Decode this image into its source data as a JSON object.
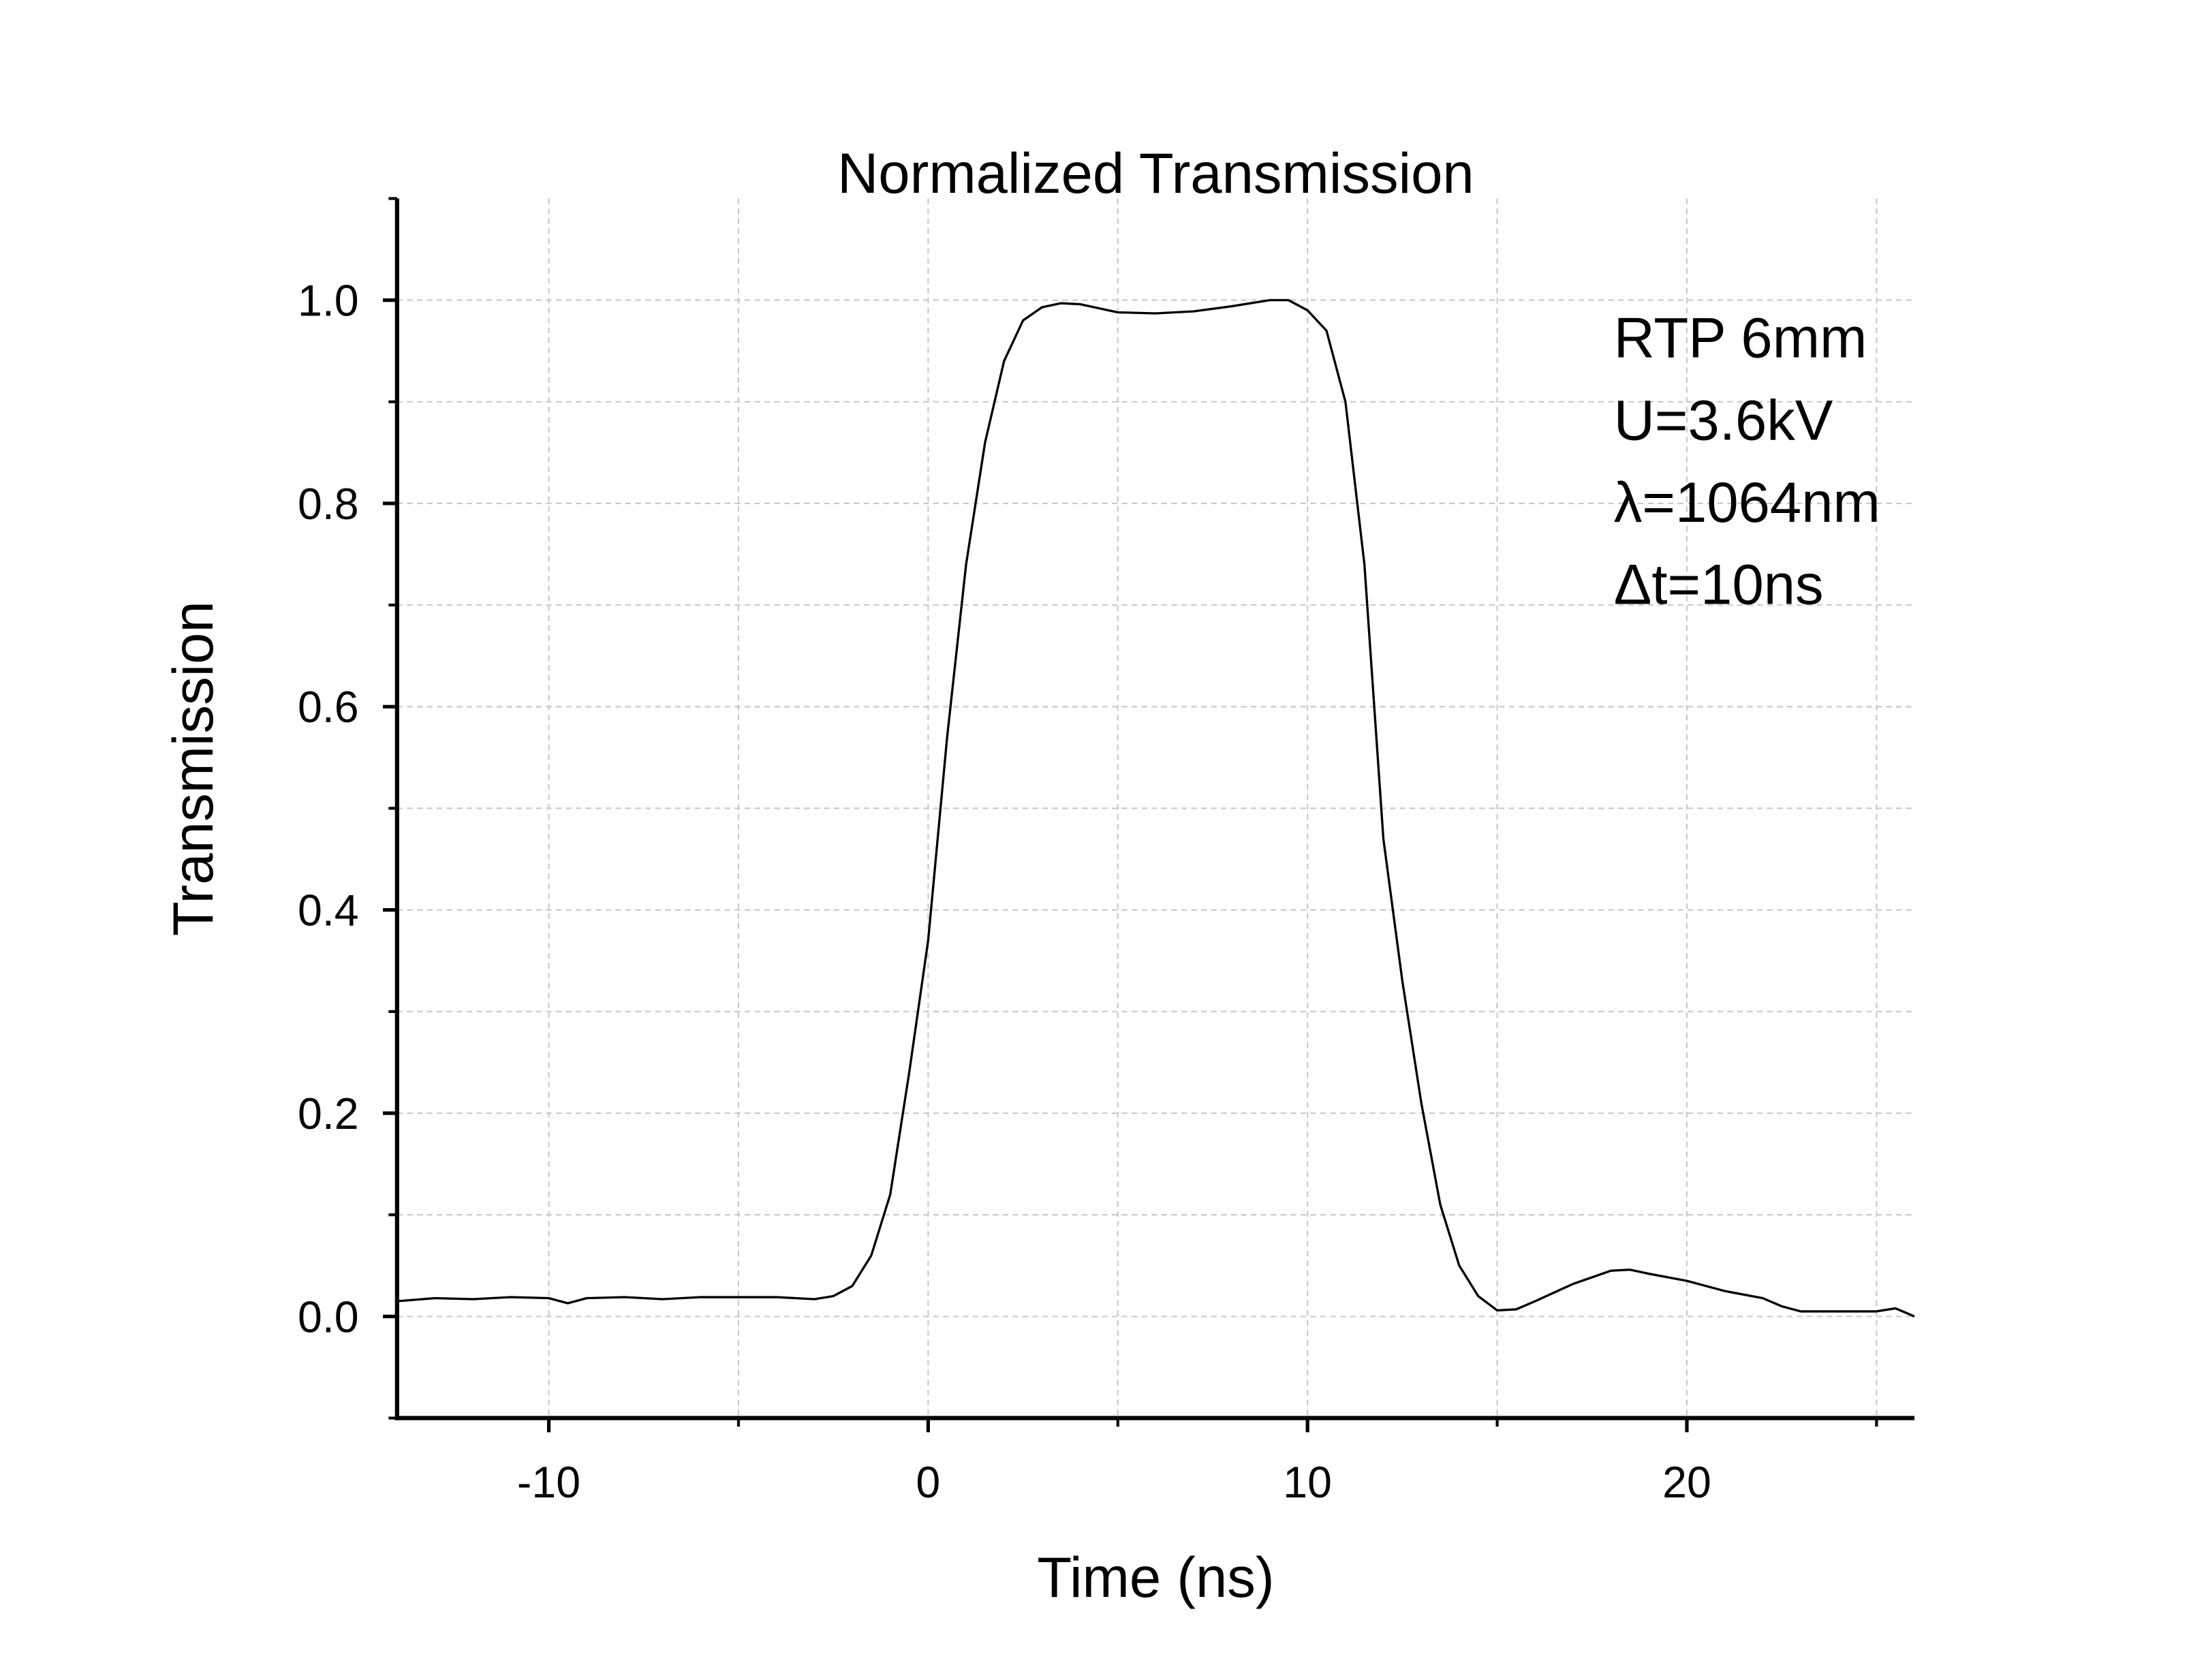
{
  "chart_data": {
    "type": "line",
    "title": "Normalized Transmission",
    "x_label": "Time (ns)",
    "y_label": "Transmission",
    "annotations": [
      "RTP 6mm",
      "U=3.6kV",
      "λ=1064nm",
      "Δt=10ns"
    ],
    "x": [
      -14,
      -13,
      -12,
      -11,
      -10,
      -9.5,
      -9,
      -8,
      -7,
      -6,
      -5,
      -4,
      -3,
      -2.5,
      -2,
      -1.5,
      -1,
      -0.5,
      0,
      0.5,
      1,
      1.5,
      2,
      2.5,
      3,
      3.5,
      4,
      5,
      6,
      7,
      8,
      9,
      9.5,
      10,
      10.5,
      11,
      11.5,
      12,
      12.5,
      13,
      13.5,
      14,
      14.5,
      15,
      15.5,
      16,
      17,
      18,
      18.5,
      19,
      20,
      21,
      22,
      22.5,
      23,
      24,
      25,
      25.5,
      26
    ],
    "values": [
      0.015,
      0.018,
      0.017,
      0.019,
      0.018,
      0.013,
      0.018,
      0.019,
      0.017,
      0.019,
      0.019,
      0.019,
      0.017,
      0.02,
      0.03,
      0.06,
      0.12,
      0.24,
      0.37,
      0.57,
      0.74,
      0.86,
      0.94,
      0.98,
      0.993,
      0.997,
      0.996,
      0.988,
      0.987,
      0.989,
      0.994,
      1.0,
      1.0,
      0.99,
      0.97,
      0.9,
      0.74,
      0.47,
      0.33,
      0.21,
      0.11,
      0.05,
      0.02,
      0.006,
      0.007,
      0.015,
      0.032,
      0.045,
      0.046,
      0.042,
      0.035,
      0.025,
      0.018,
      0.01,
      0.005,
      0.005,
      0.005,
      0.008,
      0.0
    ],
    "color": "#000000",
    "xlim": [
      -14,
      26
    ],
    "xticks": [
      -10,
      0,
      10,
      20
    ],
    "xminor": [
      -5,
      5,
      15,
      25
    ],
    "ylim": [
      -0.1,
      1.1
    ],
    "yticks": [
      {
        "value": 0,
        "label": "0.0"
      },
      {
        "value": 0.2,
        "label": "0.2"
      },
      {
        "value": 0.4,
        "label": "0.4"
      },
      {
        "value": 0.6,
        "label": "0.6"
      },
      {
        "value": 0.8,
        "label": "0.8"
      },
      {
        "value": 1,
        "label": "1.0"
      }
    ],
    "yminor": [
      0.1,
      0.3,
      0.5,
      0.7,
      0.9
    ],
    "grid": true
  }
}
